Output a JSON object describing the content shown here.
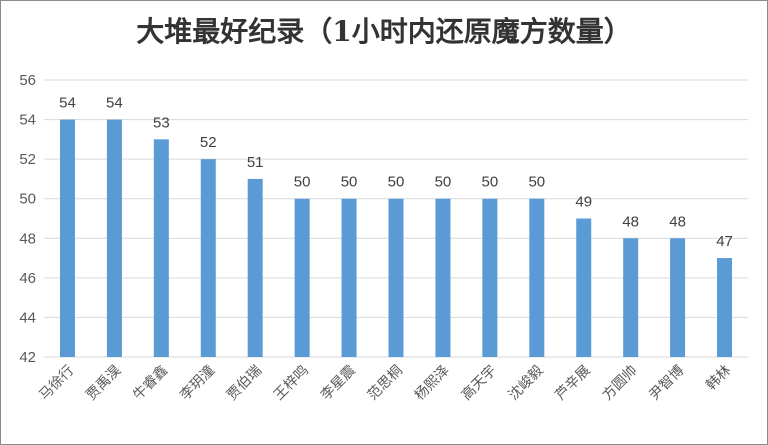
{
  "chart_data": {
    "type": "bar",
    "title": "大堆最好纪录（1小时内还原魔方数量）",
    "xlabel": "",
    "ylabel": "",
    "ylim": [
      42,
      56
    ],
    "yticks": [
      42,
      44,
      46,
      48,
      50,
      52,
      54,
      56
    ],
    "grid": true,
    "legend": "none",
    "categories": [
      "马徐行",
      "贾禹淏",
      "牛睿鑫",
      "李玥潼",
      "贾伯瑞",
      "王梓鸣",
      "李星震",
      "范思桐",
      "杨熙泽",
      "高天宇",
      "沈峻毅",
      "芦辛展",
      "方圆帅",
      "尹智博",
      "韩林"
    ],
    "values": [
      54,
      54,
      53,
      52,
      51,
      50,
      50,
      50,
      50,
      50,
      50,
      49,
      48,
      48,
      47
    ],
    "colors": {
      "bar": "#5b9bd5",
      "grid": "#d9d9d9",
      "text": "#595959"
    }
  }
}
